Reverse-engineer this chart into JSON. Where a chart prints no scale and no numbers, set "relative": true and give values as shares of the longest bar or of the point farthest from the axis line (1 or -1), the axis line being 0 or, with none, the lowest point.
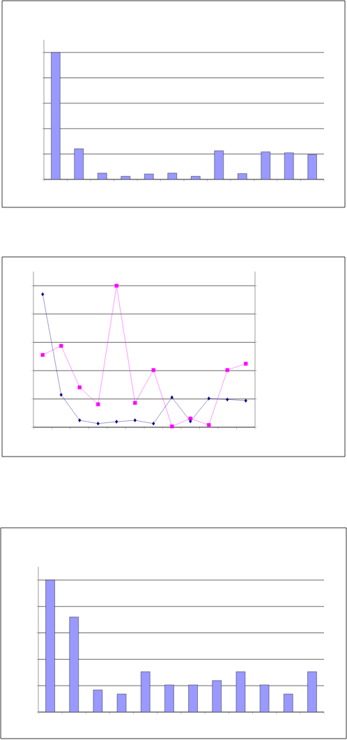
{
  "chart_data": [
    {
      "type": "bar",
      "relative": true,
      "grid": "y",
      "color": "#9999ff",
      "categories": [
        null,
        null,
        null,
        null,
        null,
        null,
        null,
        null,
        null,
        null,
        null,
        null
      ],
      "values": [
        1,
        0.242,
        0.05,
        0.025,
        0.043,
        0.05,
        0.025,
        0.226,
        0.046,
        0.217,
        0.21,
        0.196
      ]
    },
    {
      "type": "line",
      "relative": true,
      "grid": "y",
      "categories": [
        null,
        null,
        null,
        null,
        null,
        null,
        null,
        null,
        null,
        null,
        null,
        null
      ],
      "series": [
        {
          "color": "#ff00ff",
          "marker": "square",
          "values": [
            0.511,
            0.575,
            0.282,
            0.162,
            1,
            0.172,
            0.404,
            0.006,
            0.062,
            0.016,
            0.404,
            0.449
          ]
        },
        {
          "color": "#000080",
          "marker": "diamond",
          "values": [
            0.94,
            0.229,
            0.049,
            0.026,
            0.039,
            0.049,
            0.026,
            0.211,
            0.042,
            0.203,
            0.196,
            0.188
          ]
        }
      ]
    },
    {
      "type": "bar",
      "relative": true,
      "grid": "y",
      "color": "#9999ff",
      "categories": [
        null,
        null,
        null,
        null,
        null,
        null,
        null,
        null,
        null,
        null,
        null,
        null
      ],
      "values": [
        1,
        0.72,
        0.168,
        0.137,
        0.306,
        0.206,
        0.206,
        0.239,
        0.306,
        0.206,
        0.137,
        0.306
      ]
    }
  ]
}
